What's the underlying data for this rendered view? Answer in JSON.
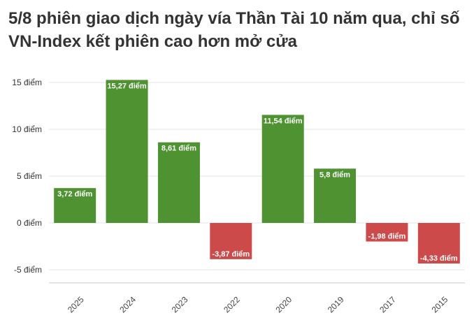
{
  "title": "5/8 phiên giao dịch ngày vía Thần Tài 10 năm qua, chỉ số VN-Index kết phiên cao hơn mở cửa",
  "chart_data": {
    "type": "bar",
    "title": "5/8 phiên giao dịch ngày vía Thần Tài 10 năm qua, chỉ số VN-Index kết phiên cao hơn mở cửa",
    "categories": [
      "2025",
      "2024",
      "2023",
      "2022",
      "2020",
      "2019",
      "2017",
      "2015"
    ],
    "values": [
      3.72,
      15.27,
      8.61,
      -3.87,
      11.54,
      5.8,
      -1.98,
      -4.33
    ],
    "data_labels": [
      "3,72 điểm",
      "15,27 điểm",
      "8,61 điểm",
      "-3,87 điểm",
      "11,54 điểm",
      "5,8 điểm",
      "-1,98 điểm",
      "-4,33 điểm"
    ],
    "y_ticks": [
      -5,
      0,
      5,
      10,
      15
    ],
    "y_tick_labels": [
      "-5 điểm",
      "0 điểm",
      "5 điểm",
      "10 điểm",
      "15 điểm"
    ],
    "ylim": [
      -5.8,
      15.8
    ],
    "xlabel": "",
    "ylabel": "",
    "grid": true,
    "legend": "none",
    "colors": {
      "positive": "#4e9231",
      "negative": "#cc4a4a",
      "grid": "#e6e6e6",
      "axis": "#cccccc"
    }
  }
}
